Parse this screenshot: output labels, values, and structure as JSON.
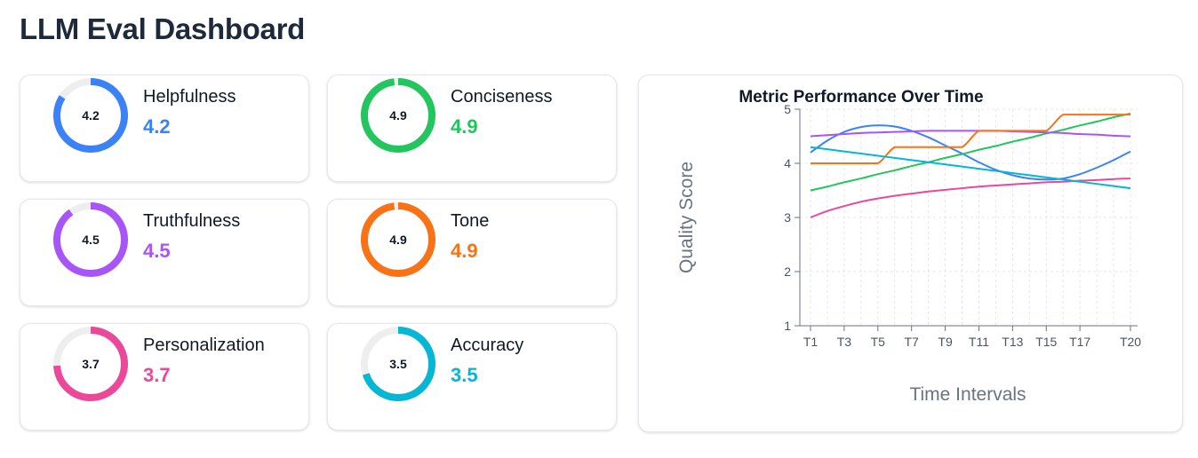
{
  "page": {
    "title": "LLM Eval Dashboard"
  },
  "metrics": [
    {
      "name": "Helpfulness",
      "value": "4.2",
      "score": 4.2,
      "max": 5,
      "color": "#3b82f6"
    },
    {
      "name": "Conciseness",
      "value": "4.9",
      "score": 4.9,
      "max": 5,
      "color": "#22c55e"
    },
    {
      "name": "Truthfulness",
      "value": "4.5",
      "score": 4.5,
      "max": 5,
      "color": "#a855f7"
    },
    {
      "name": "Tone",
      "value": "4.9",
      "score": 4.9,
      "max": 5,
      "color": "#f97316"
    },
    {
      "name": "Personalization",
      "value": "3.7",
      "score": 3.7,
      "max": 5,
      "color": "#ec4899"
    },
    {
      "name": "Accuracy",
      "value": "3.5",
      "score": 3.5,
      "max": 5,
      "color": "#06b6d4"
    }
  ],
  "chart_data": {
    "type": "line",
    "title": "Metric Performance Over Time",
    "xlabel": "Time Intervals",
    "ylabel": "Quality Score",
    "ylim": [
      1,
      5
    ],
    "yticks": [
      1,
      2,
      3,
      4,
      5
    ],
    "x": [
      "T1",
      "T2",
      "T3",
      "T4",
      "T5",
      "T6",
      "T7",
      "T8",
      "T9",
      "T10",
      "T11",
      "T12",
      "T13",
      "T14",
      "T15",
      "T16",
      "T17",
      "T18",
      "T19",
      "T20"
    ],
    "xtick_labels": [
      "T1",
      "T3",
      "T5",
      "T7",
      "T9",
      "T11",
      "T13",
      "T15",
      "T17",
      "T20"
    ],
    "grid": true,
    "series": [
      {
        "name": "Helpfulness",
        "color": "#3b82f6",
        "values": [
          4.2,
          4.42,
          4.58,
          4.67,
          4.7,
          4.68,
          4.6,
          4.48,
          4.33,
          4.18,
          4.02,
          3.88,
          3.78,
          3.72,
          3.7,
          3.72,
          3.8,
          3.92,
          4.06,
          4.22
        ]
      },
      {
        "name": "Conciseness",
        "color": "#22c55e",
        "values": [
          3.5,
          3.57,
          3.65,
          3.72,
          3.8,
          3.87,
          3.95,
          4.02,
          4.1,
          4.17,
          4.25,
          4.32,
          4.4,
          4.47,
          4.55,
          4.62,
          4.7,
          4.77,
          4.85,
          4.92
        ]
      },
      {
        "name": "Truthfulness",
        "color": "#a855f7",
        "values": [
          4.5,
          4.52,
          4.54,
          4.56,
          4.57,
          4.58,
          4.59,
          4.6,
          4.6,
          4.6,
          4.6,
          4.6,
          4.59,
          4.58,
          4.57,
          4.56,
          4.54,
          4.53,
          4.51,
          4.5
        ]
      },
      {
        "name": "Tone",
        "color": "#f97316",
        "values": [
          4.0,
          4.0,
          4.0,
          4.0,
          4.0,
          4.3,
          4.3,
          4.3,
          4.3,
          4.3,
          4.6,
          4.6,
          4.6,
          4.6,
          4.6,
          4.9,
          4.9,
          4.9,
          4.9,
          4.9
        ]
      },
      {
        "name": "Personalization",
        "color": "#ec4899",
        "values": [
          3.0,
          3.12,
          3.21,
          3.29,
          3.35,
          3.4,
          3.44,
          3.48,
          3.51,
          3.54,
          3.57,
          3.59,
          3.61,
          3.63,
          3.65,
          3.66,
          3.68,
          3.69,
          3.71,
          3.72
        ]
      },
      {
        "name": "Accuracy",
        "color": "#06b6d4",
        "values": [
          4.3,
          4.26,
          4.22,
          4.18,
          4.14,
          4.1,
          4.06,
          4.02,
          3.98,
          3.94,
          3.9,
          3.86,
          3.82,
          3.78,
          3.74,
          3.7,
          3.66,
          3.62,
          3.58,
          3.54
        ]
      }
    ]
  }
}
